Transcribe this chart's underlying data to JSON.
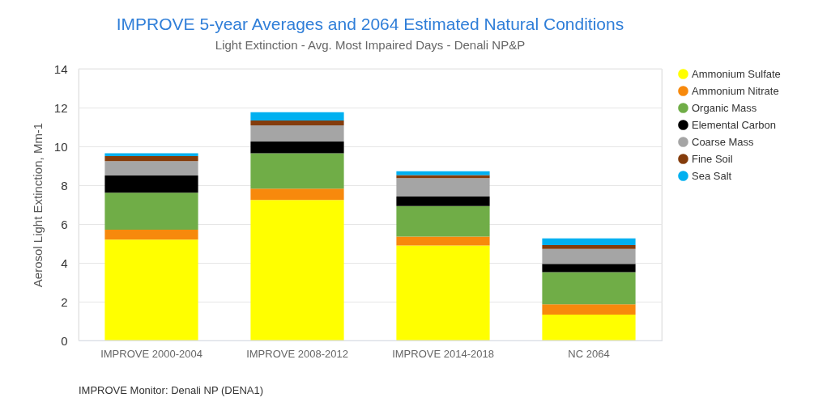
{
  "chart_data": {
    "type": "bar",
    "stacked": true,
    "title": "IMPROVE 5-year Averages and 2064 Estimated Natural Conditions",
    "subtitle": "Light Extinction - Avg. Most Impaired Days - Denali NP&P",
    "ylabel": "Aerosol Light Extinction, Mm-1",
    "categories": [
      "IMPROVE 2000-2004",
      "IMPROVE 2008-2012",
      "IMPROVE 2014-2018",
      "NC 2064"
    ],
    "series": [
      {
        "name": "Ammonium Sulfate",
        "color": "#ffff00",
        "values": [
          5.2,
          7.24,
          4.9,
          1.33
        ]
      },
      {
        "name": "Ammonium Nitrate",
        "color": "#f7890c",
        "values": [
          0.51,
          0.58,
          0.45,
          0.53
        ]
      },
      {
        "name": "Organic Mass",
        "color": "#70ad47",
        "values": [
          1.9,
          1.83,
          1.58,
          1.66
        ]
      },
      {
        "name": "Elemental Carbon",
        "color": "#000000",
        "values": [
          0.89,
          0.6,
          0.49,
          0.43
        ]
      },
      {
        "name": "Coarse Mass",
        "color": "#a5a5a5",
        "values": [
          0.74,
          0.83,
          0.94,
          0.77
        ]
      },
      {
        "name": "Fine Soil",
        "color": "#843c0c",
        "values": [
          0.26,
          0.25,
          0.16,
          0.2
        ]
      },
      {
        "name": "Sea Salt",
        "color": "#00b0f0",
        "values": [
          0.15,
          0.43,
          0.2,
          0.34
        ]
      }
    ],
    "ylim": [
      0,
      14
    ],
    "yticks": [
      0,
      2,
      4,
      6,
      8,
      10,
      12,
      14
    ],
    "grid": "y",
    "legend": "right",
    "annotations": [
      "IMPROVE Monitor: Denali NP (DENA1)"
    ]
  }
}
